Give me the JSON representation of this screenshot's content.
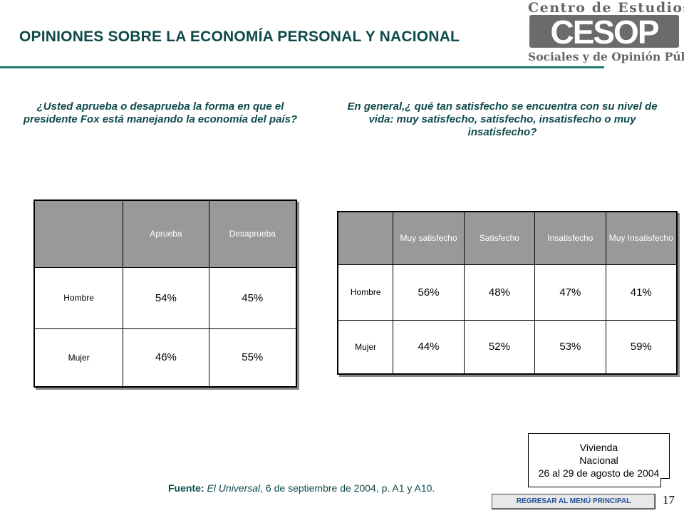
{
  "header": {
    "title": "OPINIONES SOBRE LA ECONOMÍA PERSONAL Y NACIONAL",
    "logo": {
      "top_text": "Centro de Estudios",
      "mark_text": "CESOP",
      "bottom_text": "Sociales y de Opinión Pública",
      "color": "#6b6b6b"
    }
  },
  "question_1": {
    "text": "¿Usted aprueba o desaprueba la forma en que el presidente Fox está manejando la economía del país?"
  },
  "question_2": {
    "text": "En general,¿ qué tan satisfecho se encuentra con su nivel de vida: muy satisfecho, satisfecho, insatisfecho o muy insatisfecho?"
  },
  "table_1": {
    "headers": [
      "",
      "Aprueba",
      "Desaprueba"
    ],
    "rows": [
      {
        "label": "Hombre",
        "values": [
          "54%",
          "45%"
        ]
      },
      {
        "label": "Mujer",
        "values": [
          "46%",
          "55%"
        ]
      }
    ]
  },
  "table_2": {
    "headers": [
      "",
      "Muy satisfecho",
      "Satisfecho",
      "Insatisfecho",
      "Muy Insatisfecho"
    ],
    "rows": [
      {
        "label": "Hombre",
        "values": [
          "56%",
          "48%",
          "47%",
          "41%"
        ]
      },
      {
        "label": "Mujer",
        "values": [
          "44%",
          "52%",
          "53%",
          "59%"
        ]
      }
    ]
  },
  "note": {
    "line1": "Vivienda",
    "line2": "Nacional",
    "line3": "26 al 29 de agosto de 2004"
  },
  "source": {
    "label": "Fuente:",
    "publication": "El Universal",
    "rest": ", 6 de septiembre de 2004, p. A1 y A10."
  },
  "back_button_label": "REGRESAR AL MENÚ PRINCIPAL",
  "page_number": "17",
  "colors": {
    "title": "#0f4a4a",
    "rule": "#1f7a72",
    "table_header": "#999999",
    "button_text": "#1f4f9a"
  }
}
